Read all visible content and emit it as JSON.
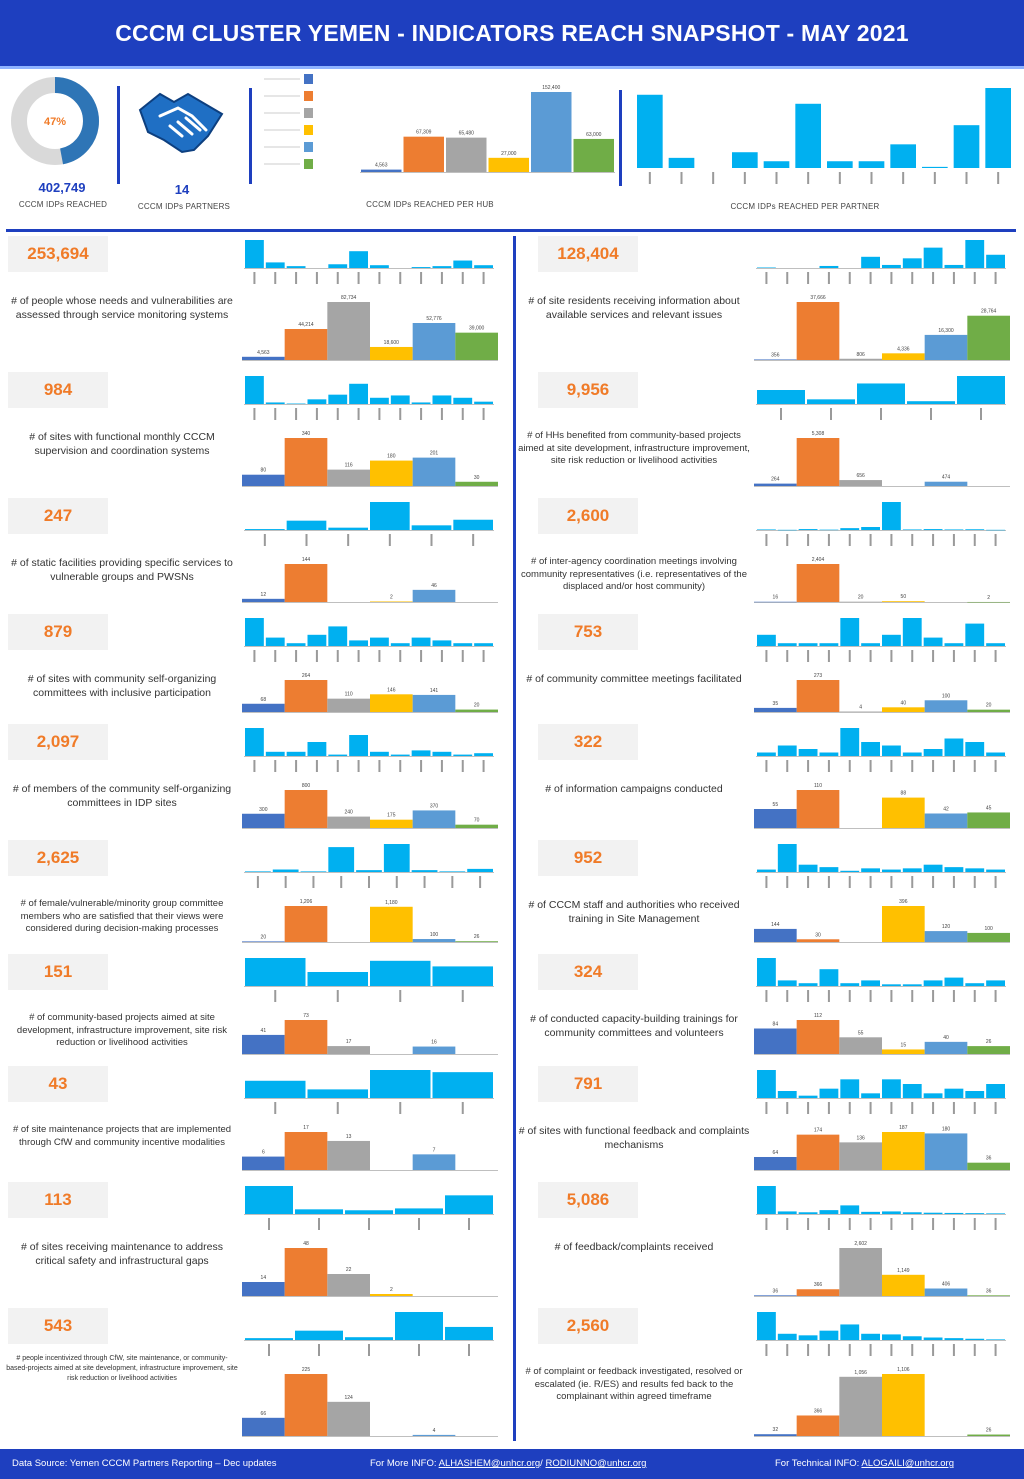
{
  "header": {
    "title": "CCCM CLUSTER YEMEN - INDICATORS REACH SNAPSHOT - MAY 2021"
  },
  "summary": {
    "donut_percent": "47%",
    "donut_fraction": 0.47,
    "reached_value": "402,749",
    "reached_label": "CCCM IDPs REACHED",
    "partners_value": "14",
    "partners_label": "CCCM IDPs PARTNERS",
    "hub_label": "CCCM IDPs REACHED PER HUB",
    "partner_label": "CCCM IDPs REACHED PER PARTNER"
  },
  "colors": {
    "brand": "#1e3fbf",
    "accent": "#f07b28",
    "palette": [
      "#4472c4",
      "#ed7d31",
      "#a5a5a5",
      "#ffc000",
      "#5b9bd5",
      "#70ad47"
    ],
    "partner": "#00b0f0"
  },
  "footer": {
    "source": "Data Source: Yemen CCCM Partners Reporting – Dec updates",
    "more_prefix": "For More INFO:",
    "more_link1": "ALHASHEM@unhcr.org",
    "more_link2": "RODIUNNO@unhcr.org",
    "tech_prefix": "For Technical INFO:",
    "tech_link": "ALOGAILI@unhcr.org"
  },
  "chart_data": [
    {
      "type": "pie",
      "name": "donut",
      "values": [
        47,
        53
      ]
    },
    {
      "type": "bar",
      "name": "hub",
      "values": [
        4563,
        67309,
        65480,
        27000,
        152400,
        63000
      ],
      "labels": [
        "4,563",
        "67,309",
        "65,480",
        "27,000",
        "152,400",
        "63,000"
      ]
    },
    {
      "type": "bar",
      "name": "partner",
      "values": [
        65,
        9,
        0,
        14,
        6,
        57,
        6,
        6,
        21,
        1,
        38,
        71
      ]
    },
    {
      "id": "i1",
      "total": "253,694",
      "desc": "# of people whose needs and vulnerabilities are assessed through service monitoring systems",
      "partners": [
        30,
        6,
        2,
        0,
        4,
        18,
        3,
        0,
        1,
        2,
        8,
        3
      ],
      "hubs": [
        4563,
        44214,
        82734,
        18600,
        52776,
        39000
      ],
      "hub_labels": [
        "4,563",
        "44,214",
        "82,734",
        "18,600",
        "52,776",
        "39,000"
      ]
    },
    {
      "id": "i2",
      "total": "128,404",
      "desc": "# of site residents receiving information about available services and relevant issues",
      "partners": [
        1,
        0,
        0,
        4,
        0,
        22,
        6,
        19,
        40,
        6,
        55,
        26
      ],
      "hubs": [
        356,
        37666,
        806,
        4336,
        16300,
        28764
      ],
      "hub_labels": [
        "356",
        "37,666",
        "806",
        "4,336",
        "16,300",
        "28,764"
      ]
    },
    {
      "id": "i3",
      "total": "984",
      "desc": "# of sites with functional monthly CCCM supervision and coordination systems",
      "partners": [
        180,
        10,
        3,
        30,
        60,
        130,
        40,
        55,
        10,
        55,
        40,
        15
      ],
      "hubs": [
        80,
        340,
        116,
        180,
        201,
        30
      ],
      "hub_labels": [
        "80",
        "340",
        "116",
        "180",
        "201",
        "30"
      ]
    },
    {
      "id": "i4",
      "total": "9,956",
      "desc": "# of HHs benefited from community-based projects aimed at site development, infrastructure improvement, site risk reduction or livelihood activities",
      "partners": [
        1500,
        500,
        2200,
        300,
        3000
      ],
      "hubs": [
        264,
        5308,
        656,
        0,
        474,
        0
      ],
      "hub_labels": [
        "264",
        "5,308",
        "656",
        "",
        "474",
        ""
      ]
    },
    {
      "id": "i5",
      "total": "247",
      "desc": "# of static facilities providing specific services to vulnerable groups and PWSNs",
      "partners": [
        2,
        20,
        5,
        60,
        10,
        22
      ],
      "hubs": [
        12,
        144,
        0,
        2,
        46,
        0
      ],
      "hub_labels": [
        "12",
        "144",
        "",
        "2",
        "46",
        ""
      ]
    },
    {
      "id": "i6",
      "total": "2,600",
      "desc": "# of inter-agency coordination meetings involving community representatives (i.e. representatives of the displaced and/or host community)",
      "partners": [
        3,
        1,
        5,
        2,
        10,
        16,
        150,
        3,
        5,
        3,
        4,
        1
      ],
      "hubs": [
        16,
        2404,
        20,
        50,
        0,
        2
      ],
      "hub_labels": [
        "16",
        "2,404",
        "20",
        "50",
        "",
        "2"
      ]
    },
    {
      "id": "i7",
      "total": "879",
      "desc": "# of sites with community self-organizing committees with inclusive participation",
      "partners": [
        100,
        30,
        10,
        40,
        70,
        20,
        30,
        10,
        30,
        20,
        10,
        10
      ],
      "hubs": [
        68,
        264,
        110,
        146,
        141,
        20
      ],
      "hub_labels": [
        "68",
        "264",
        "110",
        "146",
        "141",
        "20"
      ]
    },
    {
      "id": "i8",
      "total": "753",
      "desc": "# of community committee meetings facilitated",
      "partners": [
        40,
        10,
        10,
        10,
        100,
        10,
        40,
        100,
        30,
        10,
        80,
        10
      ],
      "hubs": [
        35,
        273,
        4,
        40,
        100,
        20
      ],
      "hub_labels": [
        "35",
        "273",
        "4",
        "40",
        "100",
        "20"
      ]
    },
    {
      "id": "i9",
      "total": "2,097",
      "desc": "# of members of the community self-organizing committees in IDP sites",
      "partners": [
        200,
        30,
        30,
        100,
        10,
        150,
        30,
        10,
        40,
        30,
        10,
        20
      ],
      "hubs": [
        300,
        800,
        240,
        175,
        370,
        70
      ],
      "hub_labels": [
        "300",
        "800",
        "240",
        "175",
        "370",
        "70"
      ]
    },
    {
      "id": "i10",
      "total": "322",
      "desc": "# of information campaigns conducted",
      "partners": [
        5,
        15,
        10,
        5,
        40,
        20,
        15,
        5,
        10,
        25,
        20,
        5
      ],
      "hubs": [
        55,
        110,
        0,
        88,
        42,
        45
      ],
      "hub_labels": [
        "55",
        "110",
        "",
        "88",
        "42",
        "45"
      ]
    },
    {
      "id": "i11",
      "total": "2,625",
      "desc": "# of female/vulnerable/minority group committee members who are satisfied that their views were considered during decision-making processes",
      "partners": [
        10,
        40,
        10,
        400,
        30,
        450,
        30,
        10,
        50
      ],
      "hubs": [
        20,
        1206,
        0,
        1180,
        100,
        26
      ],
      "hub_labels": [
        "20",
        "1,206",
        "",
        "1,180",
        "100",
        "26"
      ]
    },
    {
      "id": "i12",
      "total": "952",
      "desc": "# of CCCM staff and authorities who received training in Site Management",
      "partners": [
        20,
        230,
        60,
        40,
        10,
        30,
        20,
        30,
        60,
        40,
        30,
        20
      ],
      "hubs": [
        144,
        30,
        0,
        396,
        120,
        100
      ],
      "hub_labels": [
        "144",
        "30",
        "",
        "396",
        "120",
        "100"
      ]
    },
    {
      "id": "i13",
      "total": "151",
      "desc": "# of community-based projects aimed at site development, infrastructure improvement, site risk reduction or livelihood activities",
      "partners": [
        20,
        10,
        18,
        14
      ],
      "hubs": [
        41,
        73,
        17,
        0,
        16,
        0
      ],
      "hub_labels": [
        "41",
        "73",
        "17",
        "",
        "16",
        ""
      ]
    },
    {
      "id": "i14",
      "total": "324",
      "desc": "# of conducted capacity-building trainings for community committees and volunteers",
      "partners": [
        50,
        10,
        5,
        30,
        5,
        10,
        3,
        3,
        10,
        15,
        5,
        10
      ],
      "hubs": [
        84,
        112,
        55,
        15,
        40,
        26
      ],
      "hub_labels": [
        "84",
        "112",
        "55",
        "15",
        "40",
        "26"
      ]
    },
    {
      "id": "i15",
      "total": "43",
      "desc": "# of site maintenance projects that are implemented through CfW and community incentive modalities",
      "partners": [
        8,
        4,
        13,
        12
      ],
      "hubs": [
        6,
        17,
        13,
        0,
        7,
        0
      ],
      "hub_labels": [
        "6",
        "17",
        "13",
        "",
        "7",
        ""
      ]
    },
    {
      "id": "i16",
      "total": "791",
      "desc": "# of sites with functional feedback and complaints mechanisms",
      "partners": [
        60,
        15,
        5,
        20,
        40,
        10,
        40,
        30,
        10,
        20,
        15,
        30
      ],
      "hubs": [
        64,
        174,
        136,
        187,
        180,
        36
      ],
      "hub_labels": [
        "64",
        "174",
        "136",
        "187",
        "180",
        "36"
      ]
    },
    {
      "id": "i17",
      "total": "113",
      "desc": "# of sites receiving maintenance to address critical safety and infrastructural gaps",
      "partners": [
        30,
        5,
        4,
        6,
        20
      ],
      "hubs": [
        14,
        48,
        22,
        2,
        0,
        0
      ],
      "hub_labels": [
        "14",
        "48",
        "22",
        "2",
        "",
        ""
      ]
    },
    {
      "id": "i18",
      "total": "5,086",
      "desc": "# of feedback/complaints received",
      "partners": [
        1300,
        120,
        80,
        180,
        400,
        100,
        120,
        80,
        60,
        50,
        40,
        30
      ],
      "hubs": [
        36,
        366,
        2602,
        1149,
        406,
        36
      ],
      "hub_labels": [
        "36",
        "366",
        "2,602",
        "1,149",
        "406",
        "36"
      ]
    },
    {
      "id": "i19",
      "total": "543",
      "desc": "# people incentivized through CfW, site maintenance, or community-based-projects aimed at site development, infrastructure improvement, site risk reduction or livelihood activities",
      "partners": [
        10,
        50,
        15,
        150,
        70
      ],
      "hubs": [
        66,
        225,
        124,
        0,
        4,
        0
      ],
      "hub_labels": [
        "66",
        "225",
        "124",
        "",
        "4",
        ""
      ]
    },
    {
      "id": "i20",
      "total": "2,560",
      "desc": "# of complaint or feedback investigated, resolved or escalated (ie. R/ES) and results fed back to the complainant within agreed timeframe",
      "partners": [
        900,
        200,
        150,
        300,
        500,
        200,
        180,
        120,
        80,
        60,
        40,
        20
      ],
      "hubs": [
        32,
        366,
        1056,
        1106,
        0,
        26
      ],
      "hub_labels": [
        "32",
        "366",
        "1,056",
        "1,106",
        "",
        "26"
      ]
    }
  ]
}
